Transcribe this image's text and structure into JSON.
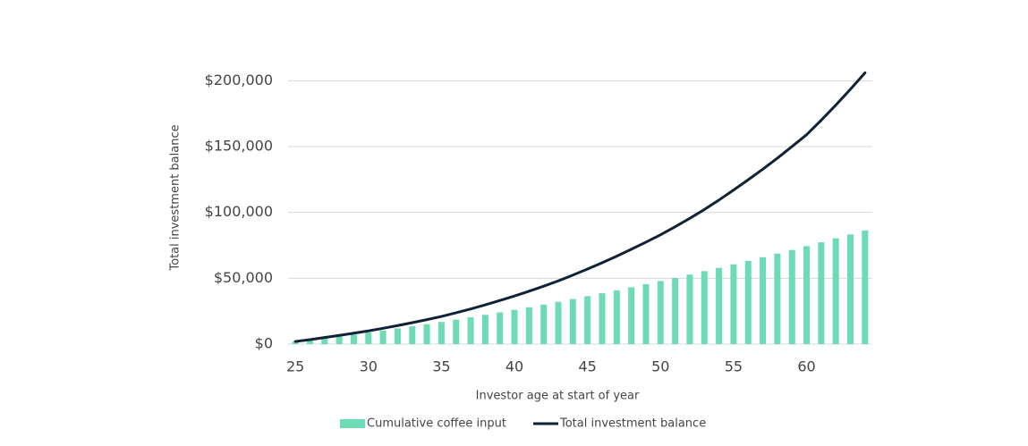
{
  "chart_data": {
    "type": "bar_line",
    "x_label": "Investor age at start of year",
    "y_label": "Total investment balance",
    "x": [
      25,
      26,
      27,
      28,
      29,
      30,
      31,
      32,
      33,
      34,
      35,
      36,
      37,
      38,
      39,
      40,
      41,
      42,
      43,
      44,
      45,
      46,
      47,
      48,
      49,
      50,
      51,
      52,
      53,
      54,
      55,
      56,
      57,
      58,
      59,
      60,
      61,
      62,
      63,
      64
    ],
    "series": [
      {
        "name": "Cumulative coffee input",
        "kind": "bar",
        "color": "#6ddbb4",
        "values": [
          1900,
          3200,
          4500,
          5900,
          7300,
          8800,
          10300,
          11900,
          13500,
          15100,
          16800,
          18600,
          20400,
          22200,
          24100,
          26000,
          28000,
          30000,
          32100,
          34200,
          36400,
          38600,
          40800,
          43100,
          45500,
          47900,
          50300,
          52800,
          55400,
          57900,
          60600,
          63200,
          66000,
          68700,
          71500,
          74400,
          77300,
          80300,
          83300,
          86300
        ]
      },
      {
        "name": "Total investment balance",
        "kind": "line",
        "color": "#0f2236",
        "values": [
          2000,
          3400,
          5000,
          6600,
          8300,
          10000,
          12000,
          14100,
          16300,
          18600,
          21000,
          23800,
          26700,
          29800,
          33100,
          36500,
          40200,
          44000,
          48000,
          52400,
          57000,
          61800,
          66800,
          72000,
          77400,
          83000,
          89100,
          95500,
          102200,
          109400,
          117000,
          124800,
          132800,
          141200,
          150000,
          159000,
          170000,
          181500,
          193500,
          206000
        ]
      }
    ],
    "xlim": [
      24.5,
      64.5
    ],
    "xticks": [
      25,
      30,
      35,
      40,
      45,
      50,
      55,
      60
    ],
    "ylim": [
      0,
      207000
    ],
    "yticks": [
      {
        "value": 0,
        "label": "$0"
      },
      {
        "value": 50000,
        "label": "$50,000"
      },
      {
        "value": 100000,
        "label": "$100,000"
      },
      {
        "value": 150000,
        "label": "$150,000"
      },
      {
        "value": 200000,
        "label": "$200,000"
      }
    ],
    "grid": true,
    "legend": "bottom"
  }
}
